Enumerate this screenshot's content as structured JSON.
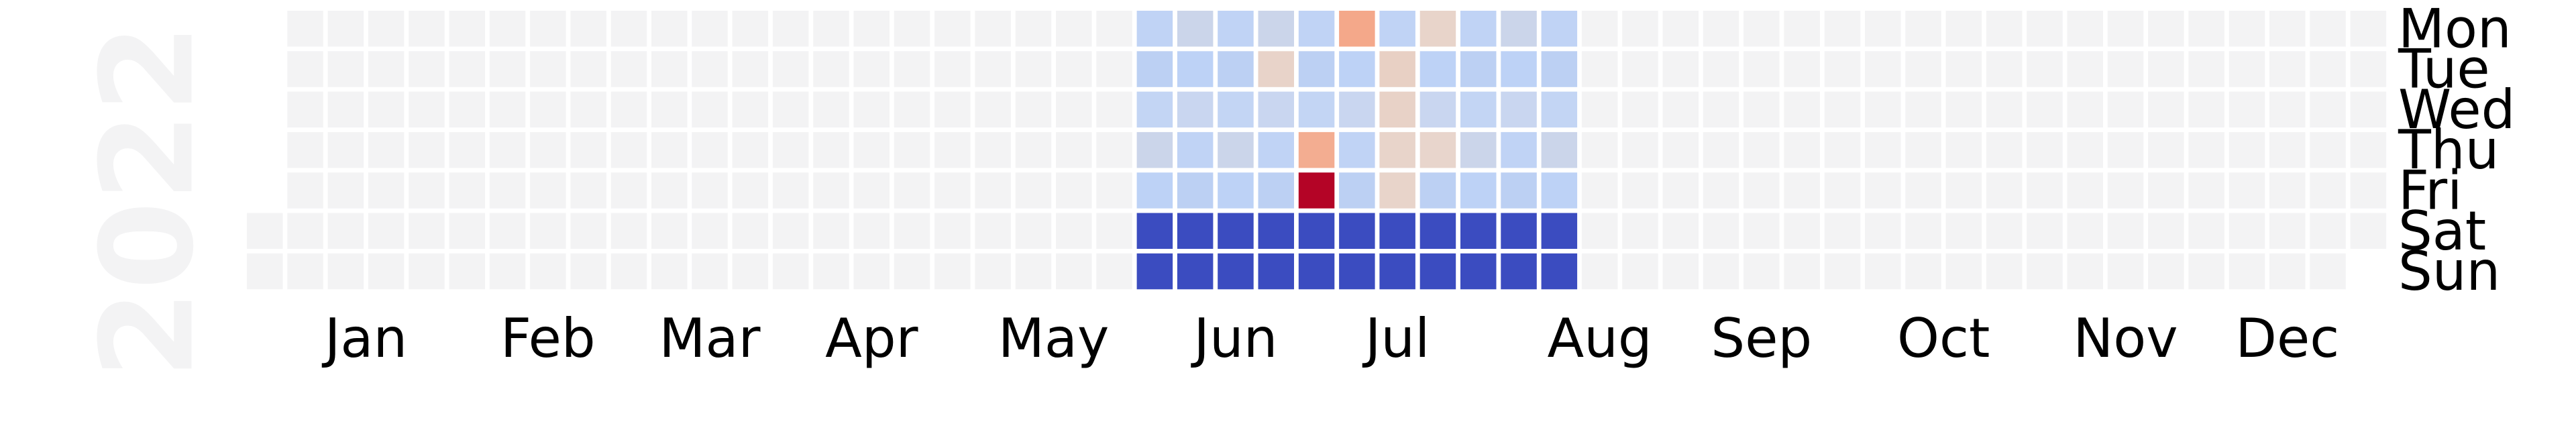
{
  "chart_data": {
    "type": "heatmap",
    "title": "",
    "year": "2022",
    "weekday_labels": [
      "Mon",
      "Tue",
      "Wed",
      "Thu",
      "Fri",
      "Sat",
      "Sun"
    ],
    "month_labels": [
      "Jan",
      "Feb",
      "Mar",
      "Apr",
      "May",
      "Jun",
      "Jul",
      "Aug",
      "Sep",
      "Oct",
      "Nov",
      "Dec"
    ],
    "first_day_weekday": "Sat",
    "num_weeks": 53,
    "active_weeks": [
      22,
      32
    ],
    "empty_color": "#f3f3f4",
    "colormap": "coolwarm",
    "weekday_value": 0.55,
    "weekend_value": 0.0,
    "notable_days": [
      {
        "week": 27,
        "weekday": "Mon",
        "value": 0.78
      },
      {
        "week": 28,
        "weekday": "Tue",
        "value": 0.62
      },
      {
        "week": 28,
        "weekday": "Wed",
        "value": 0.6
      },
      {
        "week": 26,
        "weekday": "Thu",
        "value": 0.76
      },
      {
        "week": 26,
        "weekday": "Fri",
        "value": 1.0
      },
      {
        "week": 29,
        "weekday": "Mon",
        "value": 0.57
      },
      {
        "week": 25,
        "weekday": "Tue",
        "value": 0.58
      },
      {
        "week": 28,
        "weekday": "Thu",
        "value": 0.57
      },
      {
        "week": 28,
        "weekday": "Fri",
        "value": 0.57
      },
      {
        "week": 29,
        "weekday": "Thu",
        "value": 0.56
      }
    ]
  }
}
